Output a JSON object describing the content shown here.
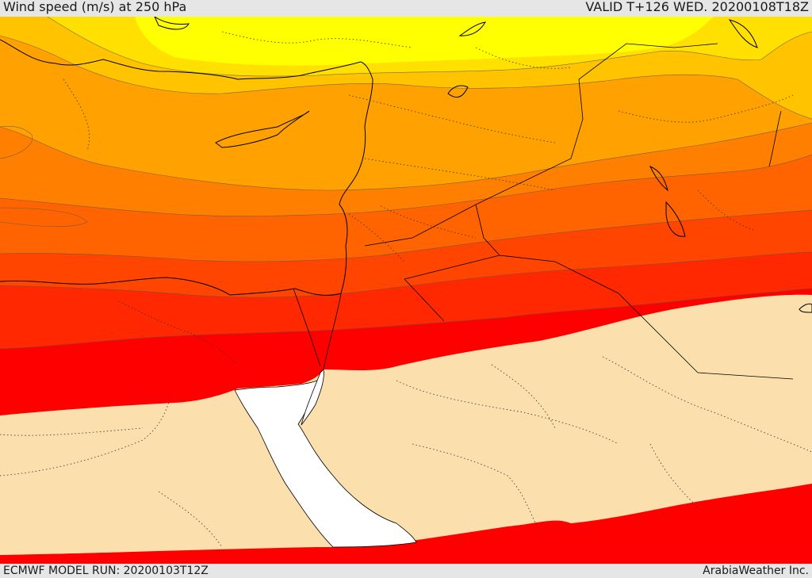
{
  "header": {
    "title": "Wind speed (m/s) at 250 hPa",
    "valid": "VALID T+126 WED. 20200108T18Z"
  },
  "footer": {
    "model_run": "ECMWF MODEL RUN: 20200103T12Z",
    "credit": "ArabiaWeather Inc."
  },
  "map": {
    "field": "wind speed",
    "level_hpa": 250,
    "units": "m/s",
    "band_colors": [
      "#fbdfac",
      "#ffff00",
      "#ffe000",
      "#ffc300",
      "#ffa100",
      "#ff8000",
      "#ff6400",
      "#ff4500",
      "#ff2800",
      "#ff0000",
      "#ffffff"
    ]
  }
}
